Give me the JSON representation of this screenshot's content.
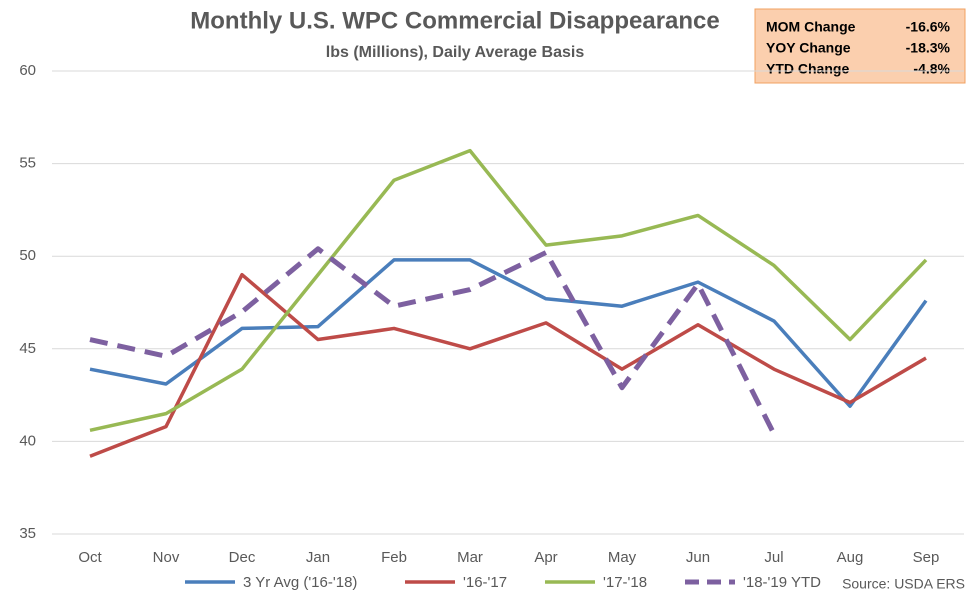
{
  "chart_data": {
    "type": "line",
    "title": "Monthly U.S. WPC Commercial Disappearance",
    "subtitle": "lbs (Millions), Daily Average Basis",
    "categories": [
      "Oct",
      "Nov",
      "Dec",
      "Jan",
      "Feb",
      "Mar",
      "Apr",
      "May",
      "Jun",
      "Jul",
      "Aug",
      "Sep"
    ],
    "series": [
      {
        "name": "3 Yr Avg ('16-'18)",
        "color": "#4a7ebb",
        "dashed": false,
        "values": [
          43.9,
          43.1,
          46.1,
          46.2,
          49.8,
          49.8,
          47.7,
          47.3,
          48.6,
          46.5,
          41.9,
          47.6
        ]
      },
      {
        "name": "'16-'17",
        "color": "#be4b48",
        "dashed": false,
        "values": [
          39.2,
          40.8,
          49.0,
          45.5,
          46.1,
          45.0,
          46.4,
          43.9,
          46.3,
          43.9,
          42.1,
          44.5
        ]
      },
      {
        "name": "'17-'18",
        "color": "#98b954",
        "dashed": false,
        "values": [
          40.6,
          41.5,
          43.9,
          49.0,
          54.1,
          55.7,
          50.6,
          51.1,
          52.2,
          49.5,
          45.5,
          49.8
        ]
      },
      {
        "name": "'18-'19 YTD",
        "color": "#7d60a0",
        "dashed": true,
        "values": [
          45.5,
          44.6,
          47.0,
          50.4,
          47.3,
          48.2,
          50.2,
          42.9,
          48.5,
          40.4,
          null,
          null
        ]
      }
    ],
    "ylim": [
      35,
      60
    ],
    "yticks": [
      35,
      40,
      45,
      50,
      55,
      60
    ],
    "grid": true,
    "info_box": [
      {
        "label": "MOM Change",
        "value": "-16.6%"
      },
      {
        "label": "YOY Change",
        "value": "-18.3%"
      },
      {
        "label": "YTD Change",
        "value": "-4.8%"
      }
    ],
    "source": "Source: USDA ERS"
  }
}
